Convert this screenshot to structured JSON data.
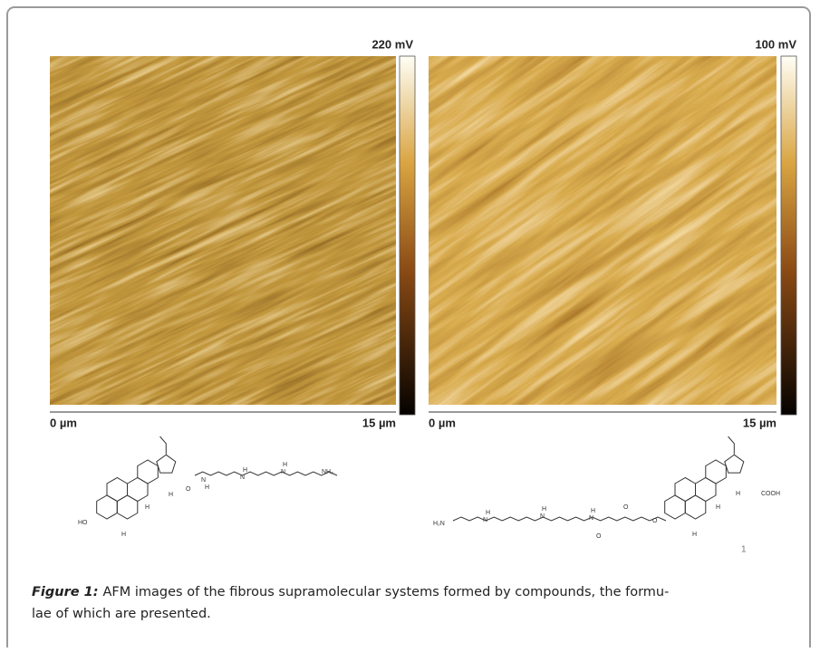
{
  "figure": {
    "panels": [
      {
        "scale_max": "220 mV",
        "x_start": "0 µm",
        "x_end": "15 µm"
      },
      {
        "scale_max": "100 mV",
        "x_start": "0 µm",
        "x_end": "15 µm"
      }
    ],
    "structures": [
      {
        "labels": [
          "HO",
          "H",
          "H",
          "H",
          "N",
          "H",
          "N",
          "H",
          "N",
          "H",
          "NH₂",
          "O"
        ]
      },
      {
        "labels": [
          "H₂N",
          "N",
          "H",
          "N",
          "H",
          "N",
          "H",
          "O",
          "O",
          "O",
          "COOH",
          "H",
          "H",
          "H"
        ]
      }
    ],
    "compound_number": "1",
    "caption": {
      "label": "Figure 1:",
      "lines": [
        "AFM images of the fibrous supramolecular systems formed by compounds, the formu-",
        "lae of which are presented."
      ]
    }
  }
}
